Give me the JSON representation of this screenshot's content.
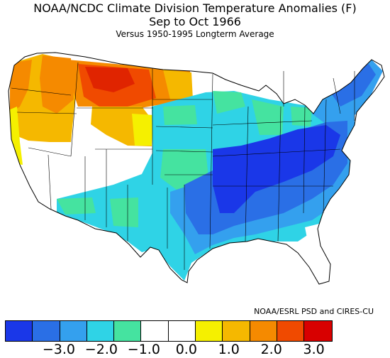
{
  "title": {
    "line1": "NOAA/NCDC Climate Division Temperature Anomalies (F)",
    "line2": "Sep to Oct 1966",
    "line3": "Versus 1950-1995 Longterm Average"
  },
  "credit": "NOAA/ESRL PSD and CIRES-CU",
  "colorbar": {
    "colors": [
      "#1a37e8",
      "#2a6fe6",
      "#34a0ee",
      "#2fd3e6",
      "#45e3a0",
      "#ffffff",
      "#ffffff",
      "#f5f000",
      "#f5b800",
      "#f58a00",
      "#f04a00",
      "#d80000"
    ],
    "ticks": [
      {
        "label": "−3.0",
        "value": -3.0
      },
      {
        "label": "−2.0",
        "value": -2.0
      },
      {
        "label": "−1.0",
        "value": -1.0
      },
      {
        "label": "0.0",
        "value": 0.0
      },
      {
        "label": "1.0",
        "value": 1.0
      },
      {
        "label": "2.0",
        "value": 2.0
      },
      {
        "label": "3.0",
        "value": 3.0
      }
    ]
  },
  "region_anomalies": {
    "montana_east_idaho": "+2.5 to +3.0",
    "pacific_northwest": "+1.0 to +2.0",
    "california_north": "+0.5 to +1.0",
    "great_basin_southwest": "0",
    "northern_plains_great_lakes": "-0.5 to -1.0",
    "ohio_tennessee_valley": "-2.5 to -3.0",
    "mid_south_gulf": "-1.5 to -2.0",
    "texas_southern_plains": "-1.0 to -1.5",
    "northeast": "-1.5 to -2.0",
    "south_atlantic": "-0.5 to -1.0",
    "florida": "0"
  }
}
